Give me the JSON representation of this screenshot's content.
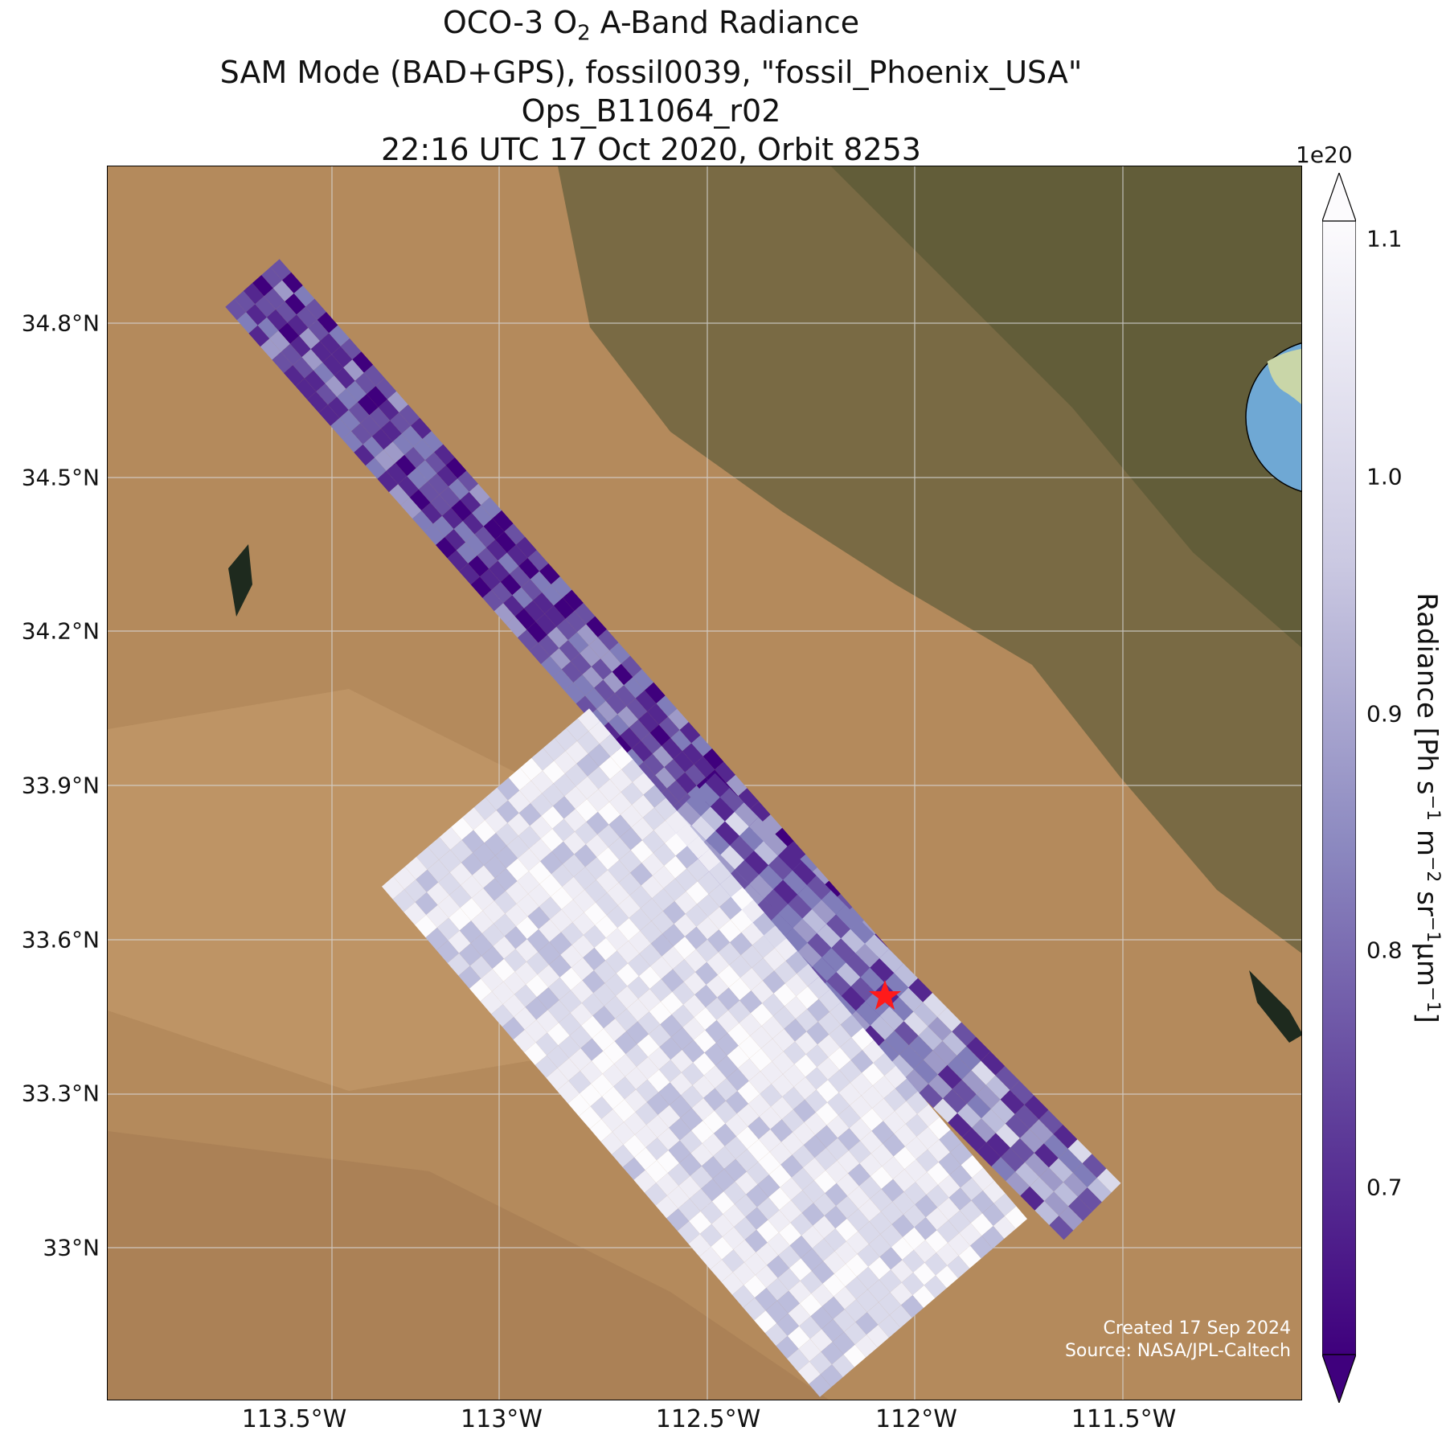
{
  "title": {
    "line1_prefix": "OCO-3 O",
    "line1_sub": "2",
    "line1_suffix": " A-Band Radiance",
    "line2": "SAM Mode (BAD+GPS), fossil0039, \"fossil_Phoenix_USA\"",
    "line3": "Ops_B11064_r02",
    "line4": "22:16 UTC 17 Oct 2020, Orbit 8253"
  },
  "map": {
    "lat_ticks": [
      "34.8°N",
      "34.5°N",
      "34.2°N",
      "33.9°N",
      "33.6°N",
      "33.3°N",
      "33°N"
    ],
    "lon_ticks": [
      "113.5°W",
      "113°W",
      "112.5°W",
      "112°W",
      "111.5°W"
    ],
    "target_marker": "red-star",
    "target_color": "#ff1a1a"
  },
  "colorbar": {
    "exponent": "1e20",
    "ticks": [
      "1.1",
      "1.0",
      "0.9",
      "0.8",
      "0.7"
    ],
    "label_main": "Radiance [Ph s",
    "label_sup1": "−1",
    "label_m": " m",
    "label_sup2": "−2",
    "label_sr": " sr",
    "label_sup3": "−1",
    "label_um": "μm",
    "label_sup4": "−1",
    "label_end": "]",
    "colormap": "Purples_r",
    "color_low": "#3f007d",
    "color_high": "#fcfbfd"
  },
  "inset": {
    "icon": "globe-north-america-icon"
  },
  "credits": {
    "created": "Created 17 Sep 2024",
    "source": "Source: NASA/JPL-Caltech"
  }
}
